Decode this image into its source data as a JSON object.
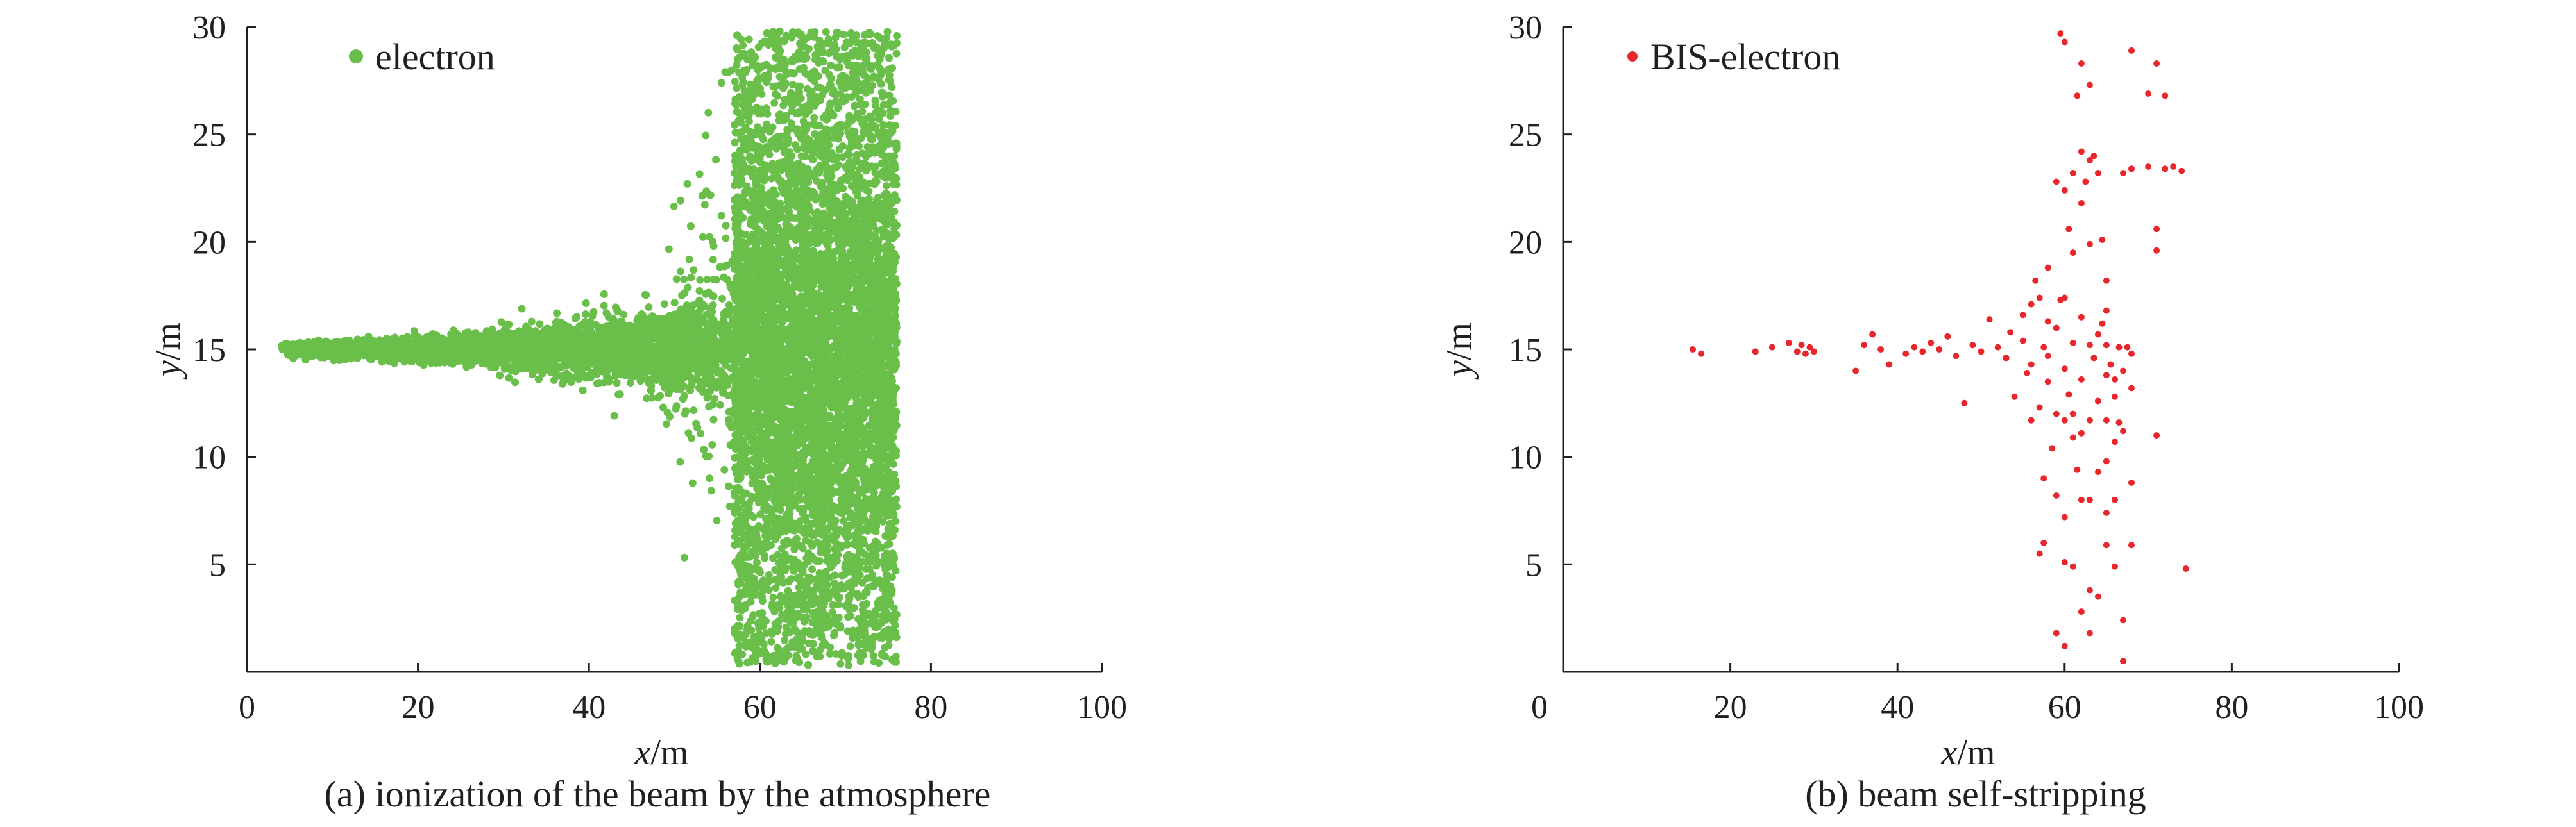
{
  "chart_data": [
    {
      "type": "scatter",
      "panel": "a",
      "caption": "(a) ionization of the beam by the atmosphere",
      "xlabel": {
        "var": "x",
        "unit": "/m"
      },
      "ylabel": {
        "var": "y",
        "unit": "/m"
      },
      "xlim": [
        0,
        100
      ],
      "ylim": [
        0,
        30
      ],
      "xticks": [
        "0",
        "20",
        "40",
        "60",
        "80",
        "100"
      ],
      "yticks": [
        "5",
        "10",
        "15",
        "20",
        "25",
        "30"
      ],
      "grid": false,
      "legend_position": "top-left",
      "series": [
        {
          "name": "electron",
          "color": "#6abf4b",
          "distribution": {
            "point_count_estimate": 9000,
            "beam_x_range": [
              4,
              57
            ],
            "beam_center_y": 15,
            "beam_half_width_start": 0.3,
            "beam_half_width_end": 2.0,
            "column_x_range": [
              57,
              76
            ],
            "column_y_range": [
              0.3,
              29.8
            ]
          },
          "points": [
            [
              4,
              15.0
            ],
            [
              8,
              15.1
            ],
            [
              12,
              14.9
            ],
            [
              16,
              15.2
            ],
            [
              20,
              15.0
            ],
            [
              25,
              15.4
            ],
            [
              30,
              14.6
            ],
            [
              35,
              15.8
            ],
            [
              40,
              14.2
            ],
            [
              45,
              16.1
            ],
            [
              50,
              13.5
            ],
            [
              52,
              17.8
            ],
            [
              55,
              12.0
            ],
            [
              58,
              29.5
            ],
            [
              60,
              27.0
            ],
            [
              62,
              22.0
            ],
            [
              64,
              18.0
            ],
            [
              66,
              15.0
            ],
            [
              68,
              10.0
            ],
            [
              70,
              6.0
            ],
            [
              72,
              3.0
            ],
            [
              74,
              1.0
            ],
            [
              59,
              1.0
            ],
            [
              75,
              28.0
            ]
          ]
        }
      ]
    },
    {
      "type": "scatter",
      "panel": "b",
      "caption": "(b) beam self-stripping",
      "xlabel": {
        "var": "x",
        "unit": "/m"
      },
      "ylabel": {
        "var": "y",
        "unit": "/m"
      },
      "xlim": [
        0,
        100
      ],
      "ylim": [
        0,
        30
      ],
      "xticks": [
        "0",
        "20",
        "40",
        "60",
        "80",
        "100"
      ],
      "yticks": [
        "5",
        "10",
        "15",
        "20",
        "25",
        "30"
      ],
      "grid": false,
      "legend_position": "top-left",
      "series": [
        {
          "name": "BIS-electron",
          "color": "#e8262b",
          "points": [
            [
              15.5,
              15.0
            ],
            [
              16.5,
              14.8
            ],
            [
              23,
              14.9
            ],
            [
              25,
              15.1
            ],
            [
              27,
              15.3
            ],
            [
              28,
              14.9
            ],
            [
              28.5,
              15.2
            ],
            [
              29,
              14.8
            ],
            [
              29.5,
              15.1
            ],
            [
              30,
              14.9
            ],
            [
              35,
              14.0
            ],
            [
              36,
              15.2
            ],
            [
              37,
              15.7
            ],
            [
              38,
              15.0
            ],
            [
              39,
              14.3
            ],
            [
              41,
              14.8
            ],
            [
              42,
              15.1
            ],
            [
              43,
              14.9
            ],
            [
              44,
              15.3
            ],
            [
              45,
              15.0
            ],
            [
              46,
              15.6
            ],
            [
              47,
              14.7
            ],
            [
              48,
              12.5
            ],
            [
              49,
              15.2
            ],
            [
              50,
              14.9
            ],
            [
              51,
              16.4
            ],
            [
              52,
              15.1
            ],
            [
              53,
              14.6
            ],
            [
              53.5,
              15.8
            ],
            [
              54,
              12.8
            ],
            [
              55,
              16.6
            ],
            [
              55.5,
              13.9
            ],
            [
              56,
              17.1
            ],
            [
              56,
              11.7
            ],
            [
              56.5,
              18.2
            ],
            [
              57,
              17.4
            ],
            [
              57,
              12.3
            ],
            [
              57.5,
              9.0
            ],
            [
              58,
              18.8
            ],
            [
              58,
              16.3
            ],
            [
              58,
              13.5
            ],
            [
              58.5,
              10.4
            ],
            [
              57.5,
              6.0
            ],
            [
              57,
              5.5
            ],
            [
              58,
              14.7
            ],
            [
              59,
              22.8
            ],
            [
              59,
              16.0
            ],
            [
              59,
              12.0
            ],
            [
              59,
              8.2
            ],
            [
              59,
              1.8
            ],
            [
              59.5,
              29.7
            ],
            [
              60,
              29.3
            ],
            [
              60,
              22.4
            ],
            [
              60,
              17.4
            ],
            [
              60,
              14.1
            ],
            [
              60,
              11.7
            ],
            [
              60,
              7.2
            ],
            [
              60,
              5.1
            ],
            [
              60,
              1.2
            ],
            [
              60.5,
              20.6
            ],
            [
              61,
              23.2
            ],
            [
              61,
              19.5
            ],
            [
              61,
              15.3
            ],
            [
              61,
              12.0
            ],
            [
              61,
              10.9
            ],
            [
              61,
              4.9
            ],
            [
              61.5,
              26.8
            ],
            [
              62,
              28.3
            ],
            [
              62,
              24.2
            ],
            [
              62,
              21.8
            ],
            [
              62,
              16.5
            ],
            [
              62,
              13.6
            ],
            [
              62,
              11.1
            ],
            [
              62,
              8.0
            ],
            [
              62,
              2.8
            ],
            [
              62.5,
              22.8
            ],
            [
              63,
              27.3
            ],
            [
              63,
              23.8
            ],
            [
              63,
              19.9
            ],
            [
              63,
              15.2
            ],
            [
              63,
              11.7
            ],
            [
              63,
              8.0
            ],
            [
              63,
              3.8
            ],
            [
              63,
              1.8
            ],
            [
              63.5,
              24.0
            ],
            [
              64,
              23.2
            ],
            [
              64,
              12.6
            ],
            [
              64,
              9.3
            ],
            [
              64,
              3.5
            ],
            [
              64.5,
              16.2
            ],
            [
              65,
              18.2
            ],
            [
              65,
              16.8
            ],
            [
              65,
              15.2
            ],
            [
              65,
              13.8
            ],
            [
              65,
              11.7
            ],
            [
              65,
              9.8
            ],
            [
              65,
              7.4
            ],
            [
              65,
              5.9
            ],
            [
              65.5,
              14.3
            ],
            [
              66,
              13.6
            ],
            [
              66,
              12.8
            ],
            [
              66,
              10.7
            ],
            [
              66,
              8.0
            ],
            [
              66,
              4.9
            ],
            [
              66.5,
              15.1
            ],
            [
              67,
              23.2
            ],
            [
              67,
              14.0
            ],
            [
              67,
              11.2
            ],
            [
              67,
              2.4
            ],
            [
              67,
              0.5
            ],
            [
              67.5,
              15.1
            ],
            [
              68,
              28.9
            ],
            [
              68,
              23.4
            ],
            [
              68,
              14.8
            ],
            [
              68,
              13.2
            ],
            [
              68,
              8.8
            ],
            [
              68,
              5.9
            ],
            [
              70,
              26.9
            ],
            [
              70,
              23.5
            ],
            [
              71,
              28.3
            ],
            [
              71,
              20.6
            ],
            [
              71,
              19.6
            ],
            [
              71,
              11.0
            ],
            [
              72,
              26.8
            ],
            [
              72,
              23.4
            ],
            [
              73,
              23.5
            ],
            [
              74,
              23.3
            ],
            [
              74.5,
              4.8
            ],
            [
              63.5,
              14.6
            ],
            [
              64,
              15.7
            ],
            [
              66.5,
              11.6
            ],
            [
              59.5,
              17.3
            ],
            [
              60.5,
              12.9
            ],
            [
              64.5,
              20.1
            ],
            [
              61.5,
              9.4
            ],
            [
              57.5,
              15.1
            ],
            [
              55,
              15.4
            ],
            [
              56,
              14.3
            ]
          ]
        }
      ]
    }
  ]
}
